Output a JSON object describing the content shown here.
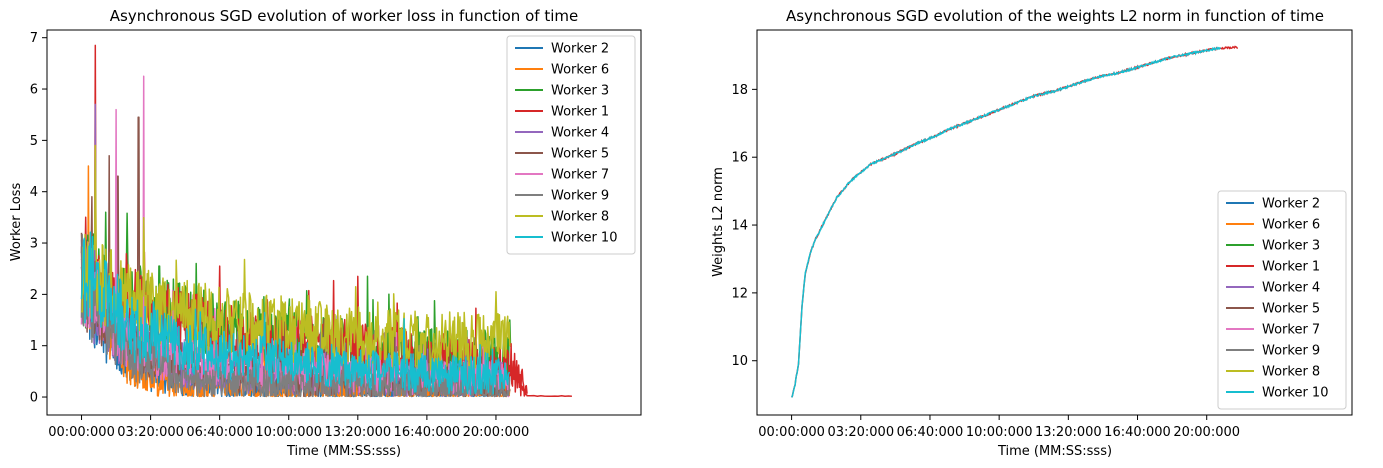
{
  "chart_data": [
    {
      "type": "line",
      "title": "Asynchronous SGD evolution of worker loss in function of time",
      "xlabel": "Time (MM:SS:sss)",
      "ylabel": "Worker Loss",
      "xlim_seconds": [
        -100,
        1620
      ],
      "ylim": [
        -0.35,
        7.15
      ],
      "x_ticks": [
        {
          "value": 0,
          "label": "00:00:000"
        },
        {
          "value": 200,
          "label": "03:20:000"
        },
        {
          "value": 400,
          "label": "06:40:000"
        },
        {
          "value": 600,
          "label": "10:00:000"
        },
        {
          "value": 800,
          "label": "13:20:000"
        },
        {
          "value": 1000,
          "label": "16:40:000"
        },
        {
          "value": 1200,
          "label": "20:00:000"
        }
      ],
      "y_ticks": [
        0,
        1,
        2,
        3,
        4,
        5,
        6,
        7
      ],
      "legend_position": "top-right",
      "grid": false,
      "series": [
        {
          "name": "Worker 2",
          "color": "#1f77b4",
          "end": 1240,
          "x": [
            0,
            20,
            60,
            150,
            300,
            500,
            800,
            1000,
            1240
          ],
          "y": [
            2.3,
            2.0,
            1.4,
            0.6,
            0.3,
            0.15,
            0.1,
            0.08,
            0.07
          ]
        },
        {
          "name": "Worker 6",
          "color": "#ff7f0e",
          "end": 1240,
          "x": [
            0,
            20,
            60,
            150,
            300,
            500,
            800,
            1000,
            1240
          ],
          "y": [
            2.3,
            2.2,
            1.5,
            0.5,
            0.25,
            0.1,
            0.08,
            0.06,
            0.05
          ],
          "spikes": [
            {
              "x": 20,
              "y": 4.5
            },
            {
              "x": 80,
              "y": 3.6
            }
          ]
        },
        {
          "name": "Worker 3",
          "color": "#2ca02c",
          "end": 1245,
          "x": [
            0,
            20,
            60,
            150,
            300,
            500,
            800,
            1000,
            1245
          ],
          "y": [
            2.3,
            2.3,
            2.2,
            1.9,
            1.5,
            1.2,
            0.95,
            0.85,
            0.8
          ],
          "spikes": [
            {
              "x": 225,
              "y": 2.55
            },
            {
              "x": 1240,
              "y": 1.5
            }
          ]
        },
        {
          "name": "Worker 1",
          "color": "#d62728",
          "end": 1290,
          "x": [
            0,
            20,
            60,
            150,
            300,
            500,
            800,
            1000,
            1240,
            1290
          ],
          "y": [
            2.3,
            2.3,
            2.1,
            1.8,
            1.4,
            1.1,
            0.95,
            0.8,
            0.7,
            0.04
          ],
          "spikes": [
            {
              "x": 40,
              "y": 6.85
            },
            {
              "x": 400,
              "y": 2.55
            },
            {
              "x": 800,
              "y": 2.35
            }
          ]
        },
        {
          "name": "Worker 4",
          "color": "#9467bd",
          "end": 1240,
          "x": [
            0,
            20,
            60,
            150,
            300,
            500,
            800,
            1000,
            1240
          ],
          "y": [
            2.3,
            2.2,
            1.6,
            1.0,
            0.6,
            0.45,
            0.4,
            0.35,
            0.35
          ],
          "spikes": [
            {
              "x": 40,
              "y": 5.7
            }
          ]
        },
        {
          "name": "Worker 5",
          "color": "#8c564b",
          "end": 1240,
          "x": [
            0,
            20,
            60,
            150,
            300,
            500,
            800,
            1000,
            1240
          ],
          "y": [
            2.3,
            2.2,
            1.7,
            1.0,
            0.6,
            0.4,
            0.3,
            0.3,
            0.25
          ],
          "spikes": [
            {
              "x": 30,
              "y": 3.9
            },
            {
              "x": 80,
              "y": 4.7
            },
            {
              "x": 105,
              "y": 4.3
            },
            {
              "x": 165,
              "y": 5.45
            }
          ]
        },
        {
          "name": "Worker 7",
          "color": "#e377c2",
          "end": 1240,
          "x": [
            0,
            20,
            60,
            150,
            300,
            500,
            800,
            1000,
            1240
          ],
          "y": [
            2.3,
            2.2,
            1.7,
            1.0,
            0.7,
            0.5,
            0.45,
            0.4,
            0.35
          ],
          "spikes": [
            {
              "x": 100,
              "y": 5.6
            },
            {
              "x": 180,
              "y": 6.25
            }
          ]
        },
        {
          "name": "Worker 9",
          "color": "#7f7f7f",
          "end": 1240,
          "x": [
            0,
            20,
            60,
            150,
            300,
            500,
            800,
            1000,
            1240
          ],
          "y": [
            2.3,
            2.1,
            1.5,
            0.8,
            0.4,
            0.25,
            0.2,
            0.18,
            0.15
          ]
        },
        {
          "name": "Worker 8",
          "color": "#bcbd22",
          "end": 1240,
          "x": [
            0,
            20,
            60,
            150,
            300,
            500,
            800,
            1000,
            1240
          ],
          "y": [
            2.3,
            2.3,
            2.2,
            1.9,
            1.6,
            1.35,
            1.2,
            1.1,
            1.05
          ],
          "spikes": [
            {
              "x": 40,
              "y": 4.9
            },
            {
              "x": 1200,
              "y": 2.05
            }
          ]
        },
        {
          "name": "Worker 10",
          "color": "#17becf",
          "end": 1240,
          "x": [
            0,
            20,
            60,
            150,
            300,
            500,
            800,
            1000,
            1240
          ],
          "y": [
            2.4,
            2.4,
            2.1,
            1.3,
            0.95,
            0.75,
            0.55,
            0.45,
            0.4
          ]
        }
      ]
    },
    {
      "type": "line",
      "title": "Asynchronous SGD evolution of the weights L2 norm in function of time",
      "xlabel": "Time (MM:SS:sss)",
      "ylabel": "Weights L2 norm",
      "xlim_seconds": [
        -100,
        1620
      ],
      "ylim": [
        8.4,
        19.75
      ],
      "x_ticks": [
        {
          "value": 0,
          "label": "00:00:000"
        },
        {
          "value": 200,
          "label": "03:20:000"
        },
        {
          "value": 400,
          "label": "06:40:000"
        },
        {
          "value": 600,
          "label": "10:00:000"
        },
        {
          "value": 800,
          "label": "13:20:000"
        },
        {
          "value": 1000,
          "label": "16:40:000"
        },
        {
          "value": 1200,
          "label": "20:00:000"
        }
      ],
      "y_ticks": [
        10,
        12,
        14,
        16,
        18
      ],
      "legend_position": "lower-right",
      "grid": false,
      "x": [
        0,
        10,
        20,
        30,
        40,
        55,
        70,
        100,
        130,
        170,
        230,
        300,
        360,
        410,
        450,
        500,
        550,
        600,
        650,
        700,
        760,
        820,
        880,
        950,
        1000,
        1050,
        1100,
        1150,
        1200,
        1240,
        1290
      ],
      "norm": [
        8.9,
        9.3,
        9.9,
        11.6,
        12.6,
        13.2,
        13.6,
        14.2,
        14.8,
        15.3,
        15.8,
        16.1,
        16.4,
        16.6,
        16.8,
        17.0,
        17.2,
        17.4,
        17.6,
        17.8,
        17.95,
        18.15,
        18.35,
        18.5,
        18.65,
        18.8,
        18.95,
        19.05,
        19.15,
        19.22,
        19.24
      ],
      "series": [
        {
          "name": "Worker 2",
          "color": "#1f77b4"
        },
        {
          "name": "Worker 6",
          "color": "#ff7f0e"
        },
        {
          "name": "Worker 3",
          "color": "#2ca02c"
        },
        {
          "name": "Worker 1",
          "color": "#d62728"
        },
        {
          "name": "Worker 4",
          "color": "#9467bd"
        },
        {
          "name": "Worker 5",
          "color": "#8c564b"
        },
        {
          "name": "Worker 7",
          "color": "#e377c2"
        },
        {
          "name": "Worker 9",
          "color": "#7f7f7f"
        },
        {
          "name": "Worker 8",
          "color": "#bcbd22"
        },
        {
          "name": "Worker 10",
          "color": "#17becf"
        }
      ]
    }
  ]
}
